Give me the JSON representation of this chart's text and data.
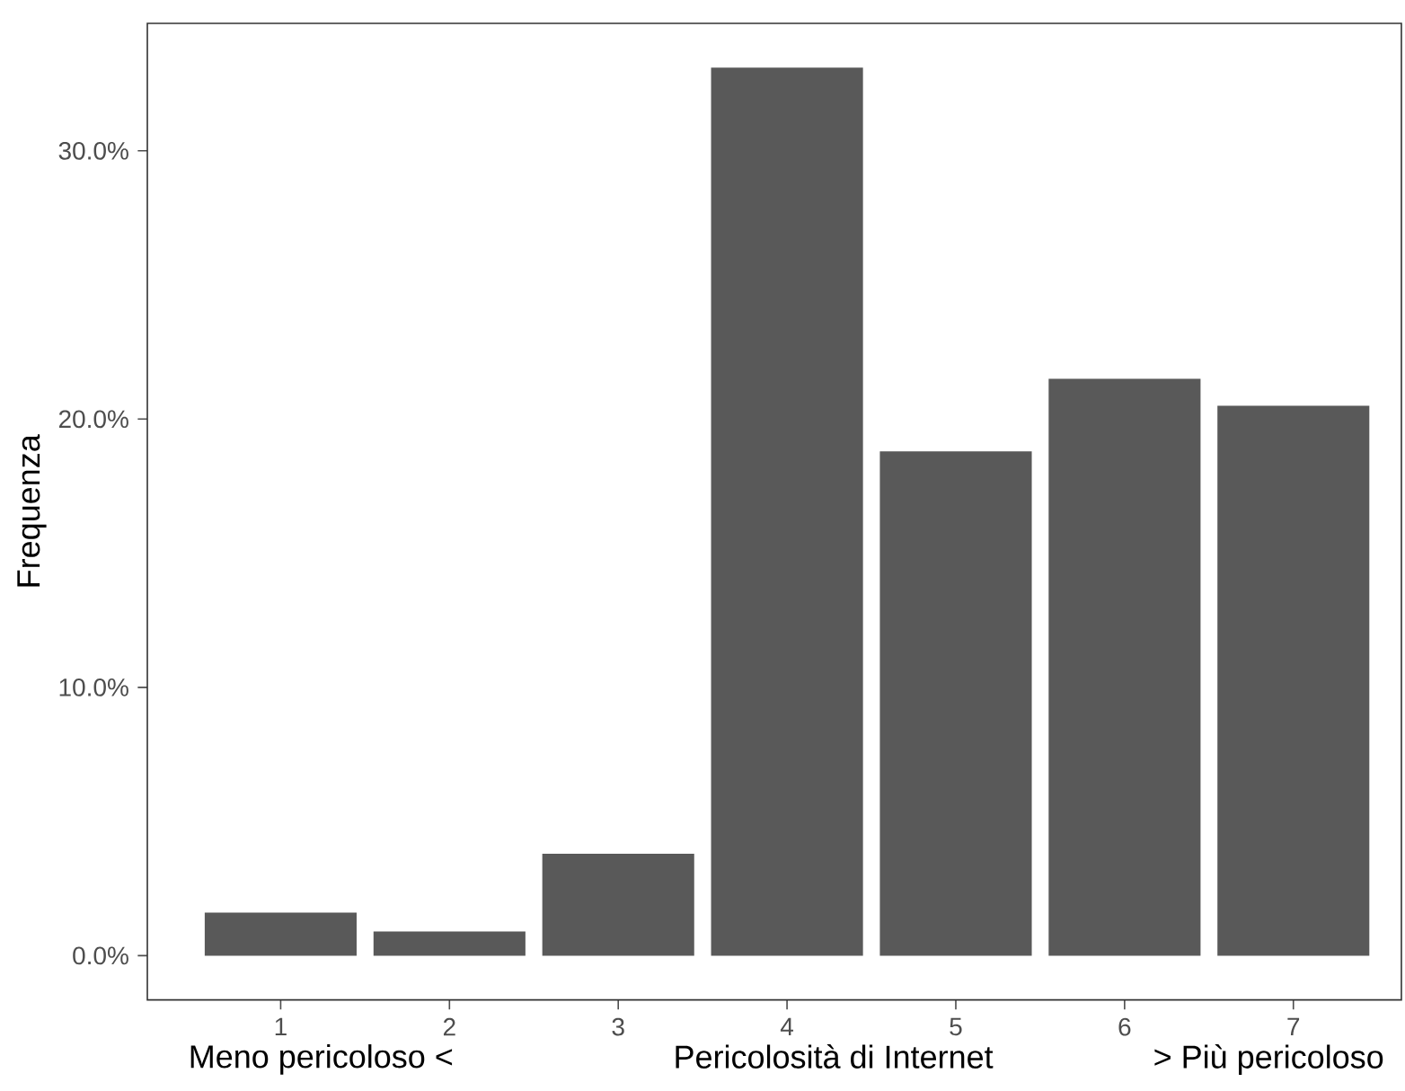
{
  "chart_data": {
    "type": "bar",
    "categories": [
      "1",
      "2",
      "3",
      "4",
      "5",
      "6",
      "7"
    ],
    "values": [
      1.6,
      0.9,
      3.8,
      33.1,
      18.8,
      21.5,
      20.5
    ],
    "color": "#595959",
    "xlabel": "Pericolosità di Internet",
    "ylabel": "Frequenza",
    "annotations": [
      "Meno pericoloso <",
      "> Più pericoloso"
    ],
    "ylim": [
      -1.65,
      34.75
    ],
    "yticks": [
      {
        "value": 0,
        "label": "0.0%"
      },
      {
        "value": 10,
        "label": "10.0%"
      },
      {
        "value": 20,
        "label": "20.0%"
      },
      {
        "value": 30,
        "label": "30.0%"
      }
    ],
    "grid": false
  }
}
